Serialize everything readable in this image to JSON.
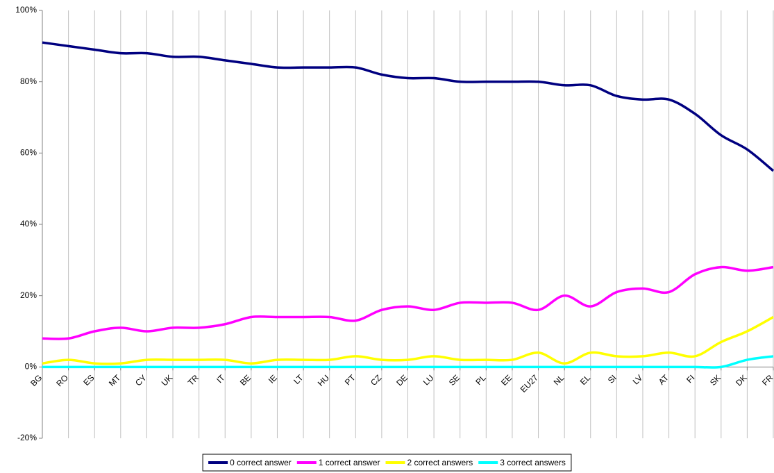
{
  "chart_data": {
    "type": "line",
    "categories": [
      "BG",
      "RO",
      "ES",
      "MT",
      "CY",
      "UK",
      "TR",
      "IT",
      "BE",
      "IE",
      "LT",
      "HU",
      "PT",
      "CZ",
      "DE",
      "LU",
      "SE",
      "PL",
      "EE",
      "EU27",
      "NL",
      "EL",
      "SI",
      "LV",
      "AT",
      "FI",
      "SK",
      "DK",
      "FR"
    ],
    "series": [
      {
        "name": "0 correct answer",
        "color": "#000080",
        "values": [
          91,
          90,
          89,
          88,
          88,
          87,
          87,
          86,
          85,
          84,
          84,
          84,
          84,
          82,
          81,
          81,
          80,
          80,
          80,
          80,
          79,
          79,
          76,
          75,
          75,
          71,
          65,
          61,
          55
        ]
      },
      {
        "name": "1 correct answer",
        "color": "#ff00ff",
        "values": [
          8,
          8,
          10,
          11,
          10,
          11,
          11,
          12,
          14,
          14,
          14,
          14,
          13,
          16,
          17,
          16,
          18,
          18,
          18,
          16,
          20,
          17,
          21,
          22,
          21,
          26,
          28,
          27,
          28
        ]
      },
      {
        "name": "2 correct answers",
        "color": "#ffff00",
        "values": [
          1,
          2,
          1,
          1,
          2,
          2,
          2,
          2,
          1,
          2,
          2,
          2,
          3,
          2,
          2,
          3,
          2,
          2,
          2,
          4,
          1,
          4,
          3,
          3,
          4,
          3,
          7,
          10,
          14
        ]
      },
      {
        "name": "3 correct answers",
        "color": "#00ffff",
        "values": [
          0,
          0,
          0,
          0,
          0,
          0,
          0,
          0,
          0,
          0,
          0,
          0,
          0,
          0,
          0,
          0,
          0,
          0,
          0,
          0,
          0,
          0,
          0,
          0,
          0,
          0,
          0,
          2,
          3
        ]
      }
    ],
    "ylim": [
      -20,
      100
    ],
    "yticks": [
      {
        "value": -20,
        "label": "-20%"
      },
      {
        "value": 0,
        "label": "0%"
      },
      {
        "value": 20,
        "label": "20%"
      },
      {
        "value": 40,
        "label": "40%"
      },
      {
        "value": 60,
        "label": "60%"
      },
      {
        "value": 80,
        "label": "80%"
      },
      {
        "value": 100,
        "label": "100%"
      }
    ],
    "vertical_grid": true,
    "smooth": true,
    "legend": "bottom"
  }
}
